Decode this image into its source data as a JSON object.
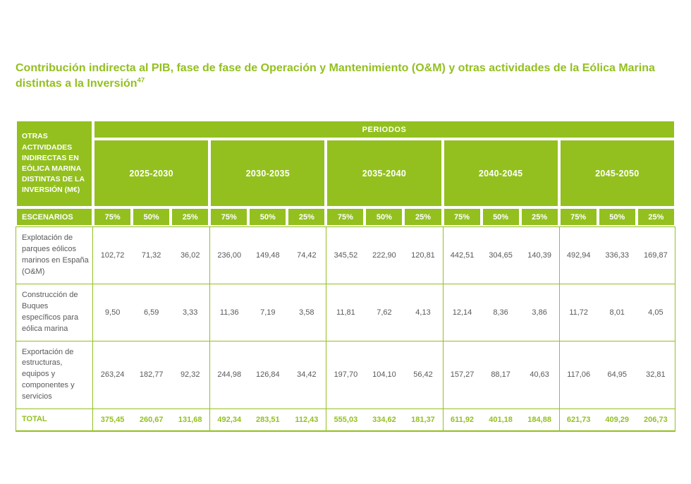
{
  "colors": {
    "green": "#93c01f",
    "text_gray": "#58595b",
    "background": "#ffffff"
  },
  "title": {
    "text": "Contribución indirecta al PIB, fase de fase de Operación y Mantenimiento (O&M) y otras actividades de la Eólica Marina distintas a la Inversión",
    "footnote": "47"
  },
  "table": {
    "corner_header": "OTRAS ACTIVIDADES INDIRECTAS EN EÓLICA MARINA DISTINTAS DE LA INVERSIÓN (M€)",
    "periods_header": "PERIODOS",
    "periods": [
      "2025-2030",
      "2030-2035",
      "2035-2040",
      "2040-2045",
      "2045-2050"
    ],
    "scenarios_header": "ESCENARIOS",
    "scenarios": [
      "75%",
      "50%",
      "25%"
    ],
    "rows": [
      {
        "label": "Explotación de parques eólicos marinos en España (O&M)",
        "values": [
          "102,72",
          "71,32",
          "36,02",
          "236,00",
          "149,48",
          "74,42",
          "345,52",
          "222,90",
          "120,81",
          "442,51",
          "304,65",
          "140,39",
          "492,94",
          "336,33",
          "169,87"
        ]
      },
      {
        "label": "Construcción de Buques específicos para eólica marina",
        "values": [
          "9,50",
          "6,59",
          "3,33",
          "11,36",
          "7,19",
          "3,58",
          "11,81",
          "7,62",
          "4,13",
          "12,14",
          "8,36",
          "3,86",
          "11,72",
          "8,01",
          "4,05"
        ]
      },
      {
        "label": "Exportación de estructuras, equipos y componentes y servicios",
        "values": [
          "263,24",
          "182,77",
          "92,32",
          "244,98",
          "126,84",
          "34,42",
          "197,70",
          "104,10",
          "56,42",
          "157,27",
          "88,17",
          "40,63",
          "117,06",
          "64,95",
          "32,81"
        ]
      }
    ],
    "total": {
      "label": "TOTAL",
      "values": [
        "375,45",
        "260,67",
        "131,68",
        "492,34",
        "283,51",
        "112,43",
        "555,03",
        "334,62",
        "181,37",
        "611,92",
        "401,18",
        "184,88",
        "621,73",
        "409,29",
        "206,73"
      ]
    }
  }
}
